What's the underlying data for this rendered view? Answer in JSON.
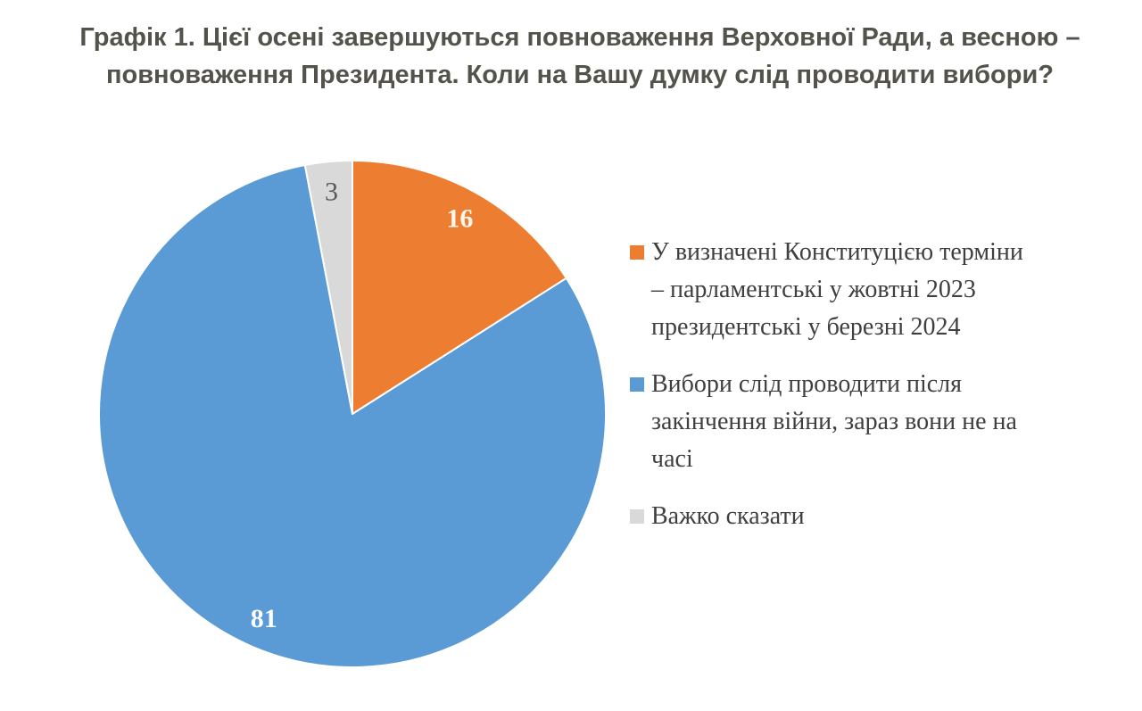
{
  "title": {
    "text": "Графік 1. Цієї осені завершуються повноваження Верховної Ради, а весною – повноваження Президента. Коли на Вашу думку слід проводити вибори?",
    "display": "Графік 1. Цієї осені завершуються повноваження Верховної Ради, а весною –\nповноваження Президента. Коли на Вашу думку слід проводити вибори?",
    "color": "#54534B"
  },
  "chart_data": {
    "type": "pie",
    "title": "Графік 1. Цієї осені завершуються повноваження Верховної Ради, а весною – повноваження Президента. Коли на Вашу думку слід проводити вибори?",
    "units": "percent",
    "start_angle_deg": 0,
    "direction": "clockwise",
    "legend_position": "right",
    "data_labels": "inside slices",
    "categories": [
      "У визначені Конституцією терміни – парламентські у жовтні 2023 президентські у березні 2024",
      "Вибори слід проводити після закінчення війни, зараз вони не на часі",
      "Важко сказати"
    ],
    "values": [
      16,
      81,
      3
    ],
    "slices": [
      {
        "label": "У визначені Конституцією терміни – парламентські у жовтні 2023 президентські у березні 2024",
        "legend_label": "У визначені Конституцією терміни\n– парламентські у жовтні 2023\nпрезидентські у березні 2024",
        "value": 16,
        "value_label": "16",
        "color": "#ED7D31",
        "value_label_color": "#FDF6EA",
        "value_label_weight": "bold"
      },
      {
        "label": "Вибори слід проводити після закінчення війни, зараз вони не на часі",
        "legend_label": "Вибори слід проводити після\nзакінчення війни, зараз вони не на\nчасі",
        "value": 81,
        "value_label": "81",
        "color": "#5B9BD5",
        "value_label_color": "#FFFFFF",
        "value_label_weight": "bold"
      },
      {
        "label": "Важко сказати",
        "legend_label": "Важко сказати",
        "value": 3,
        "value_label": "3",
        "color": "#D9D9D9",
        "value_label_color": "#595959",
        "value_label_weight": "normal"
      }
    ],
    "slice_border_color": "#FFFFFF"
  },
  "legend": {
    "text_color": "#3F3F3F"
  }
}
